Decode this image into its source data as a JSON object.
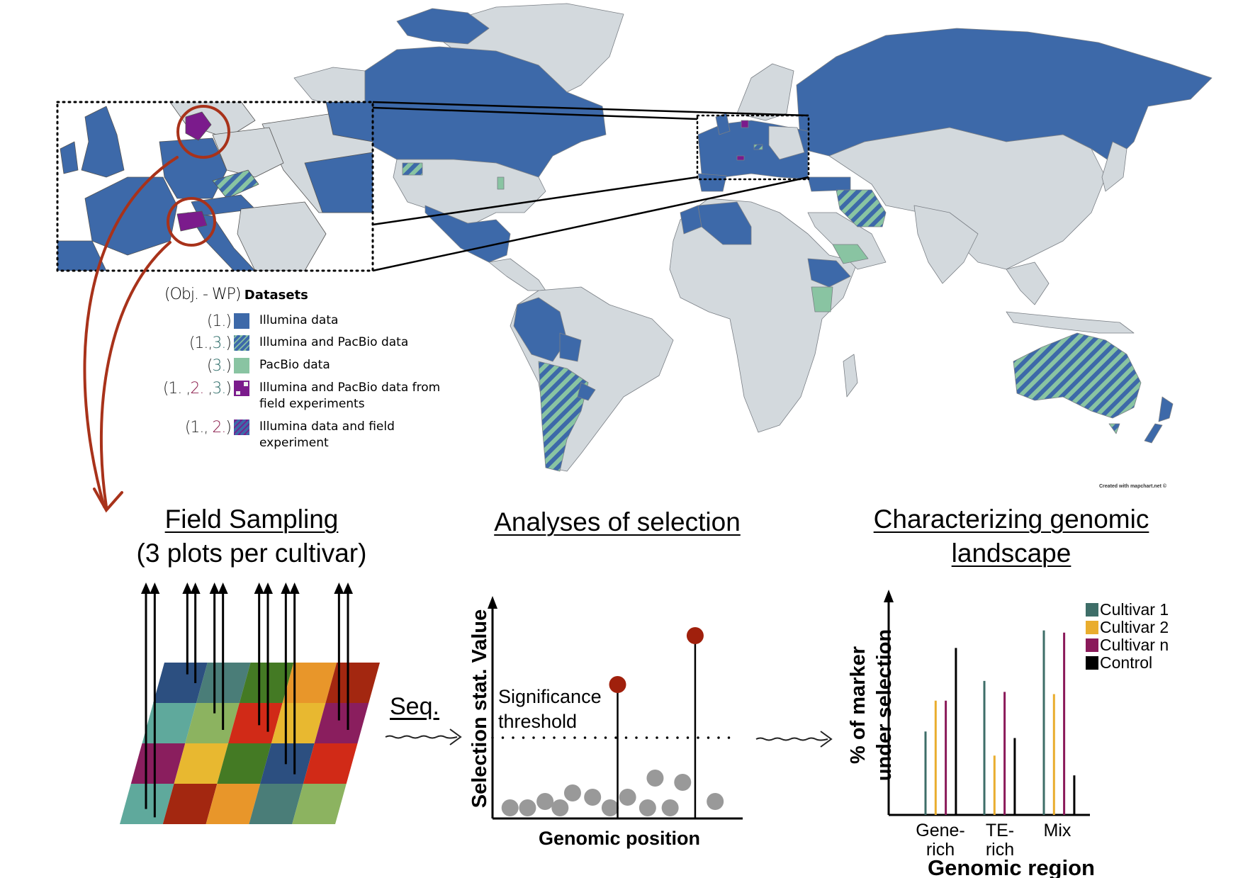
{
  "map": {
    "credit": "Created with mapchart.net ©",
    "colors": {
      "illumina": "#3d69a9",
      "pacbio": "#89c4a2",
      "field": "#7b1b8c",
      "none": "#d3d9dd",
      "highlight": "#a8321a"
    }
  },
  "legend": {
    "prefix": "(Obj. - WP)",
    "title": "Datasets",
    "items": [
      {
        "code_parts": [
          {
            "text": "(1.)",
            "color": "#222"
          }
        ],
        "label": "Illumina data",
        "swatch": "illumina"
      },
      {
        "code_parts": [
          {
            "text": "(1.,",
            "color": "#222"
          },
          {
            "text": "3.",
            "color": "#2f6e6a"
          },
          {
            "text": ")",
            "color": "#222"
          }
        ],
        "label": "Illumina and PacBio data",
        "swatch": "illumina-pacbio"
      },
      {
        "code_parts": [
          {
            "text": "(",
            "color": "#222"
          },
          {
            "text": "3.",
            "color": "#2f6e6a"
          },
          {
            "text": ")",
            "color": "#222"
          }
        ],
        "label": "PacBio data",
        "swatch": "pacbio"
      },
      {
        "code_parts": [
          {
            "text": "(1. ,",
            "color": "#222"
          },
          {
            "text": "2.",
            "color": "#8a1a4a"
          },
          {
            "text": " ,",
            "color": "#222"
          },
          {
            "text": "3.",
            "color": "#2f6e6a"
          },
          {
            "text": ")",
            "color": "#222"
          }
        ],
        "label": "Illumina and PacBio data from field experiments",
        "swatch": "field"
      },
      {
        "code_parts": [
          {
            "text": "(1., ",
            "color": "#222"
          },
          {
            "text": "2.",
            "color": "#8a1a4a"
          },
          {
            "text": ")",
            "color": "#222"
          }
        ],
        "label": "Illumina data and field experiment",
        "swatch": "illumina-field"
      }
    ]
  },
  "panels": {
    "field": {
      "title": "Field Sampling",
      "subtitle": "(3 plots per cultivar)",
      "plot_colors": [
        [
          "#2c4f80",
          "#4a7d78",
          "#447a24",
          "#e8962a",
          "#a32710"
        ],
        [
          "#5fa99c",
          "#8cb360",
          "#d12a17",
          "#e8b830",
          "#8a1e5e"
        ],
        [
          "#8a1e5e",
          "#e8b830",
          "#447a24",
          "#2c4f80",
          "#d12a17"
        ],
        [
          "#5fa99c",
          "#a32710",
          "#e8962a",
          "#4a7d78",
          "#8cb360"
        ]
      ]
    },
    "seq_label": "Seq.",
    "analyses": {
      "title": "Analyses of selection"
    },
    "landscape": {
      "title_line1": "Characterizing genomic",
      "title_line2": "landscape"
    }
  },
  "chart_data": [
    {
      "type": "scatter",
      "title": "Analyses of selection",
      "xlabel": "Genomic position",
      "ylabel": "Selection stat. Value",
      "xlim": [
        0,
        100
      ],
      "ylim": [
        0,
        100
      ],
      "threshold": {
        "value": 38,
        "label_line1": "Significance",
        "label_line2": "threshold"
      },
      "points": [
        {
          "x": 7,
          "y": 5
        },
        {
          "x": 14,
          "y": 5
        },
        {
          "x": 21,
          "y": 8
        },
        {
          "x": 27,
          "y": 5
        },
        {
          "x": 32,
          "y": 12
        },
        {
          "x": 40,
          "y": 10
        },
        {
          "x": 47,
          "y": 5
        },
        {
          "x": 54,
          "y": 10
        },
        {
          "x": 62,
          "y": 5
        },
        {
          "x": 65,
          "y": 19
        },
        {
          "x": 71,
          "y": 5
        },
        {
          "x": 76,
          "y": 17
        },
        {
          "x": 89,
          "y": 8
        }
      ],
      "significant_points": [
        {
          "x": 50,
          "y": 63
        },
        {
          "x": 81,
          "y": 86
        }
      ],
      "colors": {
        "point": "#999999",
        "significant": "#a0200c"
      }
    },
    {
      "type": "bar",
      "title": "Characterizing genomic landscape",
      "xlabel": "Genomic region",
      "ylabel_line1": "% of marker",
      "ylabel_line2": "under selection",
      "ylim": [
        0,
        100
      ],
      "categories": [
        [
          "Gene-",
          "rich"
        ],
        [
          "TE-",
          "rich"
        ],
        [
          "Mix",
          ""
        ]
      ],
      "series": [
        {
          "name": "Cultivar 1",
          "color": "#3e6e68",
          "values": [
            38,
            61,
            84
          ]
        },
        {
          "name": "Cultivar 2",
          "color": "#e9ad2e",
          "values": [
            52,
            27,
            55
          ]
        },
        {
          "name": "Cultivar n",
          "color": "#8a1a5a",
          "values": [
            52,
            56,
            83
          ]
        },
        {
          "name": "Control",
          "color": "#000000",
          "values": [
            76,
            35,
            18
          ]
        }
      ],
      "legend_position": "top-right"
    }
  ]
}
